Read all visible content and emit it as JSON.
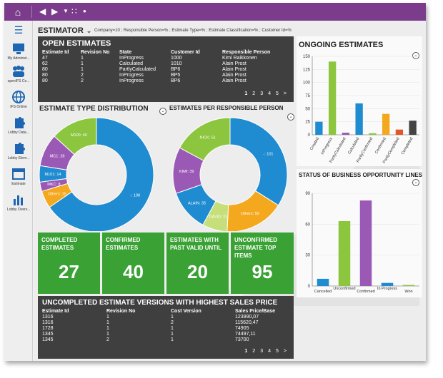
{
  "nav": {
    "home_icon": "home-icon",
    "back_icon": "back-arrow-icon",
    "forward_icon": "forward-arrow-icon",
    "dropdown_icon": "caret-down-icon",
    "apps_icon": "grid-icon",
    "dot_icon": "dot-icon"
  },
  "sidebar": {
    "menu_icon": "hamburger-icon",
    "items": [
      {
        "label": "My Administ...",
        "icon": "admin-icon"
      },
      {
        "label": "openIFS Co...",
        "icon": "community-icon"
      },
      {
        "label": "IFS Online",
        "icon": "globe-icon"
      },
      {
        "label": "Lobby Data...",
        "icon": "puzzle-icon"
      },
      {
        "label": "Lobby Elem...",
        "icon": "puzzle-icon"
      },
      {
        "label": "Estimate",
        "icon": "window-icon"
      },
      {
        "label": "Lobby Overv...",
        "icon": "bar-chart-icon"
      }
    ]
  },
  "header": {
    "title": "ESTIMATOR",
    "filter": "Company=10 ; Responsible Person=% ; Estimate Type=% ; Estimate Classification=% ; Customer Id=%"
  },
  "open_estimates": {
    "title": "OPEN ESTIMATES",
    "columns": [
      "Estimate Id",
      "Revision No",
      "State",
      "Customer Id",
      "Responsible Person"
    ],
    "rows": [
      [
        "47",
        "1",
        "InProgress",
        "1000",
        "Kimi Raikkonen"
      ],
      [
        "62",
        "1",
        "Calculated",
        "1010",
        "Alain Prost"
      ],
      [
        "80",
        "1",
        "PartlyCalculated",
        "BP6",
        "Alain Prost"
      ],
      [
        "80",
        "2",
        "InProgress",
        "BP5",
        "Alain Prost"
      ],
      [
        "80",
        "2",
        "InProgress",
        "BP6",
        "Alain Prost"
      ]
    ],
    "pages": [
      "1",
      "2",
      "3",
      "4",
      "5",
      ">"
    ]
  },
  "type_distribution": {
    "title": "ESTIMATE TYPE DISTRIBUTION",
    "labels": [
      {
        "text": "-: 198",
        "value": 198
      },
      {
        "text": "Others: 15",
        "value": 15
      },
      {
        "text": "MKC: 8",
        "value": 8
      },
      {
        "text": "M101: 14",
        "value": 14
      },
      {
        "text": "MC1: 28",
        "value": 28
      },
      {
        "text": "M100: 40",
        "value": 40
      }
    ]
  },
  "per_person": {
    "title": "ESTIMATES PER RESPONSIBLE PERSON",
    "labels": [
      {
        "text": "-: 101",
        "value": 101
      },
      {
        "text": "Others: 50",
        "value": 50
      },
      {
        "text": "DAVID: 21",
        "value": 21
      },
      {
        "text": "ALAIN: 35",
        "value": 35
      },
      {
        "text": "KIMI: 39",
        "value": 39
      },
      {
        "text": "NICK: 51",
        "value": 51
      }
    ]
  },
  "kpis": [
    {
      "title": "COMPLETED ESTIMATES",
      "value": "27"
    },
    {
      "title": "CONFIRMED ESTIMATES",
      "value": "40"
    },
    {
      "title": "ESTIMATES WITH PAST VALID UNTIL",
      "value": "20"
    },
    {
      "title": "UNCONFIRMED ESTIMATE TOP ITEMS",
      "value": "95"
    }
  ],
  "uncompleted": {
    "title": "UNCOMPLETED ESTIMATE VERSIONS WITH HIGHEST SALES PRICE",
    "columns": [
      "Estimate Id",
      "Revision No",
      "Cost Version",
      "Sales Price/Base"
    ],
    "rows": [
      [
        "1316",
        "1",
        "1",
        "123990,07"
      ],
      [
        "1316",
        "1",
        "2",
        "115620,47"
      ],
      [
        "1728",
        "1",
        "1",
        "74905"
      ],
      [
        "1345",
        "1",
        "1",
        "74497,11"
      ],
      [
        "1345",
        "2",
        "1",
        "73700"
      ]
    ],
    "pages": [
      "1",
      "2",
      "3",
      "4",
      "5",
      ">"
    ]
  },
  "colors": {
    "accent": "#7b3c8c",
    "green": "#3aa135",
    "dark_panel": "#3f3f3f",
    "blue": "#1f8bd0",
    "lime": "#8cc63f",
    "purple": "#9b59b6",
    "orange": "#f4a81d",
    "red": "#e2562a",
    "dark": "#444444"
  },
  "chart_data": [
    {
      "type": "bar",
      "title": "ONGOING ESTIMATES",
      "categories": [
        "Created",
        "InProgress",
        "PartlyCalculated",
        "Calculated",
        "PartlyConfirmed",
        "Confirmed",
        "PartlyCompleted",
        "Completed"
      ],
      "values": [
        25,
        140,
        4,
        60,
        3,
        40,
        10,
        27
      ],
      "colors": [
        "#1f8bd0",
        "#8cc63f",
        "#9b59b6",
        "#1f8bd0",
        "#8cc63f",
        "#f4a81d",
        "#e2562a",
        "#444444"
      ],
      "ylim": [
        0,
        150
      ],
      "yticks": [
        "0",
        "25",
        "50",
        "75",
        "100",
        "125",
        "150"
      ]
    },
    {
      "type": "bar",
      "title": "STATUS OF BUSINESS OPPORTUNITY LINES",
      "categories": [
        "Cancelled",
        "Unconfirmed",
        "Confirmed",
        "In Progress",
        "Won"
      ],
      "values": [
        7,
        63,
        83,
        3,
        1
      ],
      "colors": [
        "#1f8bd0",
        "#8cc63f",
        "#9b59b6",
        "#1f8bd0",
        "#8cc63f"
      ],
      "ylim": [
        0,
        90
      ],
      "yticks": [
        "0",
        "30",
        "60",
        "90"
      ]
    },
    {
      "type": "pie",
      "title": "ESTIMATE TYPE DISTRIBUTION",
      "categories": [
        "-",
        "Others",
        "MKC",
        "M101",
        "MC1",
        "M100"
      ],
      "values": [
        198,
        15,
        8,
        14,
        28,
        40
      ],
      "colors": [
        "#1f8bd0",
        "#f4a81d",
        "#9b59b6",
        "#1f8bd0",
        "#9b59b6",
        "#8cc63f"
      ]
    },
    {
      "type": "pie",
      "title": "ESTIMATES PER RESPONSIBLE PERSON",
      "categories": [
        "-",
        "Others",
        "DAVID",
        "ALAIN",
        "KIMI",
        "NICK"
      ],
      "values": [
        101,
        50,
        21,
        35,
        39,
        51
      ],
      "colors": [
        "#1f8bd0",
        "#f4a81d",
        "#c6df7a",
        "#1f8bd0",
        "#9b59b6",
        "#8cc63f"
      ]
    }
  ]
}
